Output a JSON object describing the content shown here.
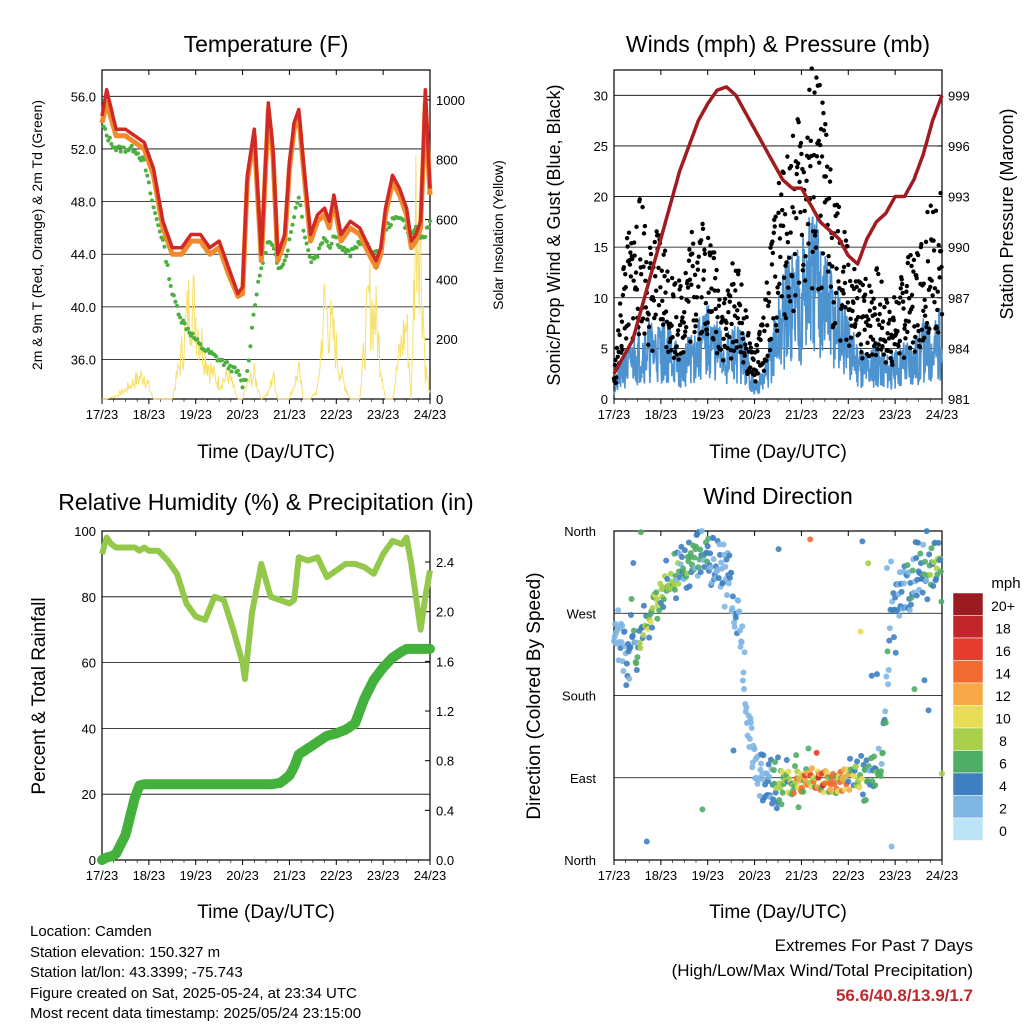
{
  "colors": {
    "temp": "#d12a26",
    "temp_orange": "#f08a2c",
    "dew": "#4daf3f",
    "solar": "#f7e06b",
    "wind": "#4d93d0",
    "gust": "#000000",
    "pressure": "#a01c20",
    "rh": "#93c84a",
    "precip": "#44b13c",
    "extremes": "#c0282d"
  },
  "x_tick_labels": [
    "17/23",
    "18/23",
    "19/23",
    "20/23",
    "21/23",
    "22/23",
    "23/23",
    "24/23"
  ],
  "panels": {
    "temperature": {
      "title": "Temperature (F)",
      "xlabel": "Time (Day/UTC)",
      "ylabel_left": "2m & 9m T (Red, Orange) & 2m Td (Green)",
      "ylabel_right": "Solar Insolation (Yellow)",
      "left_ticks": [
        "56.0",
        "52.0",
        "48.0",
        "44.0",
        "40.0",
        "36.0"
      ],
      "right_ticks": [
        "1000",
        "800",
        "600",
        "400",
        "200",
        "0"
      ]
    },
    "winds": {
      "title": "Winds (mph) & Pressure (mb)",
      "xlabel": "Time (Day/UTC)",
      "ylabel_left": "Sonic/Prop Wind & Gust (Blue, Black)",
      "ylabel_right": "Station Pressure (Maroon)",
      "left_ticks": [
        "30",
        "25",
        "20",
        "15",
        "10",
        "5",
        "0"
      ],
      "right_ticks": [
        "999",
        "996",
        "993",
        "990",
        "987",
        "984",
        "981"
      ]
    },
    "humidity": {
      "title": "Relative Humidity (%) & Precipitation (in)",
      "xlabel": "Time (Day/UTC)",
      "ylabel_left": "Percent & Total Rainfall",
      "left_ticks": [
        "100",
        "80",
        "60",
        "40",
        "20",
        "0"
      ],
      "right_ticks": [
        "2.4",
        "2.0",
        "1.6",
        "1.2",
        "0.8",
        "0.4",
        "0.0"
      ]
    },
    "direction": {
      "title": "Wind Direction",
      "xlabel": "Time (Day/UTC)",
      "ylabel_left": "Direction (Colored By Speed)",
      "left_ticks": [
        "North",
        "West",
        "South",
        "East",
        "North"
      ],
      "legend_title": "mph",
      "legend_labels": [
        "20+",
        "18",
        "16",
        "14",
        "12",
        "10",
        "8",
        "6",
        "4",
        "2",
        "0"
      ],
      "legend_colors": [
        "#9b1c20",
        "#c3262a",
        "#e43c2e",
        "#f26b33",
        "#f7a847",
        "#e7dc55",
        "#a9cf4b",
        "#4fad65",
        "#3f7fc0",
        "#7fb6e4",
        "#bde3f7"
      ]
    }
  },
  "info": {
    "location": "Location: Camden",
    "elevation": "Station elevation: 150.327 m",
    "latlon": "Station lat/lon: 43.3399; -75.743",
    "created": "Figure created on Sat, 2025-05-24, at 23:34 UTC",
    "recent": "Most recent data timestamp: 2025/05/24 23:15:00"
  },
  "extremes": {
    "line1": "Extremes For Past 7 Days",
    "line2": "(High/Low/Max Wind/Total Precipitation)",
    "values": "56.6/40.8/13.9/1.7"
  },
  "chart_data": [
    {
      "type": "line",
      "title": "Temperature (F)",
      "xlabel": "Time (Day/UTC)",
      "ylabel": "2m & 9m T (Red, Orange) & 2m Td (Green)",
      "ylabel_right": "Solar Insolation (Yellow)",
      "x_range": [
        0,
        7
      ],
      "ylim": [
        33,
        58
      ],
      "ylim_right": [
        0,
        1100
      ],
      "x": [
        0,
        0.1,
        0.3,
        0.5,
        0.7,
        0.9,
        1.1,
        1.3,
        1.5,
        1.7,
        1.9,
        2.1,
        2.3,
        2.5,
        2.7,
        2.9,
        3.0,
        3.1,
        3.25,
        3.4,
        3.55,
        3.65,
        3.75,
        3.9,
        4.0,
        4.1,
        4.2,
        4.3,
        4.45,
        4.6,
        4.75,
        4.85,
        4.95,
        5.1,
        5.3,
        5.5,
        5.7,
        5.85,
        5.95,
        6.05,
        6.2,
        6.35,
        6.5,
        6.6,
        6.7,
        6.8,
        6.9,
        7.0
      ],
      "series": [
        {
          "name": "2m T",
          "values": [
            54.5,
            56.5,
            53.5,
            53.5,
            53,
            52.5,
            50.5,
            46.5,
            44.5,
            44.5,
            45.5,
            45.5,
            44.5,
            45,
            43,
            41,
            41.5,
            50,
            53.5,
            44,
            55.5,
            52,
            44,
            45.5,
            51,
            54,
            55,
            51,
            45.5,
            47,
            47.5,
            46.5,
            48.5,
            45.5,
            46.5,
            46,
            44.5,
            43.5,
            44.5,
            47.5,
            50,
            49,
            47.5,
            45,
            45.5,
            46.5,
            56.5,
            49
          ]
        },
        {
          "name": "9m T",
          "values": [
            54,
            55.5,
            53,
            53,
            52.5,
            52,
            50,
            46,
            44,
            44,
            45,
            45,
            44,
            44.5,
            42.5,
            40.8,
            41,
            49.5,
            53,
            43.5,
            55,
            51.5,
            43.5,
            45,
            50.5,
            53.5,
            54.5,
            50.5,
            45,
            46.5,
            47,
            46,
            48,
            45,
            46,
            45.5,
            44,
            43,
            44,
            47,
            49.5,
            48.5,
            47,
            44.5,
            45,
            46,
            55.5,
            48.5
          ]
        },
        {
          "name": "2m Td",
          "values": [
            54,
            53,
            52,
            52,
            52,
            51,
            47.5,
            45,
            41,
            39,
            38,
            37,
            36.5,
            36,
            35.5,
            35,
            34,
            35,
            40,
            43,
            45,
            44.5,
            43,
            43.5,
            45,
            47,
            48.5,
            46,
            43.5,
            44,
            45.5,
            44.5,
            45.5,
            44.5,
            44,
            45,
            44.5,
            44,
            44,
            46,
            46.5,
            47,
            46,
            45.5,
            46,
            45,
            45.5,
            46.5
          ]
        },
        {
          "name": "Solar",
          "values": [
            0,
            0,
            10,
            30,
            60,
            80,
            0,
            0,
            0,
            150,
            350,
            200,
            100,
            50,
            80,
            0,
            0,
            50,
            80,
            0,
            20,
            80,
            0,
            0,
            0,
            50,
            90,
            0,
            0,
            30,
            310,
            250,
            200,
            80,
            0,
            0,
            330,
            260,
            120,
            0,
            0,
            150,
            250,
            0,
            650,
            520,
            100,
            20
          ]
        }
      ]
    },
    {
      "type": "scatter",
      "title": "Winds (mph) & Pressure (mb)",
      "xlabel": "Time (Day/UTC)",
      "ylabel": "Sonic/Prop Wind & Gust (Blue, Black)",
      "ylabel_right": "Station Pressure (Maroon)",
      "x_range": [
        0,
        7
      ],
      "ylim": [
        0,
        32.5
      ],
      "ylim_right": [
        981,
        1000.5
      ],
      "x": [
        0,
        0.1,
        0.2,
        0.4,
        0.6,
        0.8,
        1.0,
        1.2,
        1.4,
        1.6,
        1.8,
        2.0,
        2.2,
        2.4,
        2.6,
        2.8,
        3.0,
        3.2,
        3.4,
        3.6,
        3.8,
        4.0,
        4.2,
        4.4,
        4.6,
        4.8,
        5.0,
        5.2,
        5.4,
        5.6,
        5.8,
        6.0,
        6.2,
        6.4,
        6.6,
        6.8,
        7.0
      ],
      "series": [
        {
          "name": "Wind",
          "values": [
            1,
            2,
            3,
            4,
            5,
            5,
            5,
            5,
            3,
            4,
            5,
            6,
            5,
            4,
            5,
            4,
            1,
            2,
            5,
            8,
            10,
            11,
            12,
            11,
            9,
            7,
            5,
            4,
            3,
            4,
            3,
            3,
            4,
            4,
            5,
            5,
            6
          ]
        },
        {
          "name": "Gust",
          "values": [
            2,
            5,
            10,
            12,
            14,
            10,
            12,
            9,
            8,
            11,
            13,
            12,
            9,
            7,
            10,
            6,
            3,
            6,
            12,
            16,
            18,
            20,
            22,
            21,
            17,
            13,
            10,
            8,
            8,
            9,
            7,
            7,
            9,
            10,
            12,
            13,
            15
          ]
        },
        {
          "name": "Pressure",
          "values": [
            982.5,
            983,
            983.5,
            984.5,
            986.5,
            988.5,
            990.5,
            992.5,
            994.5,
            996,
            997.5,
            998.5,
            999.3,
            999.5,
            999,
            998,
            997,
            996,
            995,
            994,
            993.5,
            993.5,
            992.5,
            991.5,
            991,
            990.5,
            989.5,
            989,
            990.5,
            991.5,
            992,
            993,
            993,
            994,
            995.5,
            997.5,
            999
          ]
        }
      ]
    },
    {
      "type": "line",
      "title": "Relative Humidity (%) & Precipitation (in)",
      "xlabel": "Time (Day/UTC)",
      "ylabel": "Percent & Total Rainfall",
      "x_range": [
        0,
        7
      ],
      "ylim": [
        0,
        100
      ],
      "ylim_right": [
        0,
        2.65
      ],
      "x": [
        0,
        0.1,
        0.2,
        0.3,
        0.5,
        0.7,
        0.8,
        0.9,
        1.0,
        1.2,
        1.4,
        1.6,
        1.8,
        2.0,
        2.2,
        2.4,
        2.6,
        2.8,
        3.0,
        3.05,
        3.2,
        3.4,
        3.6,
        3.8,
        4.0,
        4.1,
        4.2,
        4.4,
        4.6,
        4.8,
        5.0,
        5.2,
        5.4,
        5.6,
        5.8,
        6.0,
        6.2,
        6.4,
        6.5,
        6.6,
        6.7,
        6.8,
        6.9,
        7.0
      ],
      "series": [
        {
          "name": "RH",
          "values": [
            93,
            98,
            96,
            95,
            95,
            95,
            94,
            95,
            94,
            94,
            91,
            87,
            78,
            74,
            73,
            80,
            79,
            70,
            60,
            55,
            75,
            90,
            80,
            79,
            78,
            79,
            92,
            91,
            92,
            86,
            88,
            90,
            90,
            89,
            87,
            93,
            97,
            96,
            98,
            90,
            80,
            70,
            80,
            88
          ]
        },
        {
          "name": "Precipitation",
          "values": [
            0,
            0.02,
            0.03,
            0.05,
            0.2,
            0.5,
            0.6,
            0.61,
            0.61,
            0.61,
            0.61,
            0.61,
            0.61,
            0.61,
            0.61,
            0.61,
            0.61,
            0.61,
            0.61,
            0.61,
            0.61,
            0.61,
            0.61,
            0.62,
            0.68,
            0.75,
            0.85,
            0.9,
            0.95,
            1.0,
            1.02,
            1.05,
            1.1,
            1.3,
            1.45,
            1.55,
            1.63,
            1.68,
            1.7,
            1.7,
            1.7,
            1.7,
            1.7,
            1.7
          ]
        }
      ]
    },
    {
      "type": "scatter",
      "title": "Wind Direction",
      "xlabel": "Time (Day/UTC)",
      "ylabel": "Direction (Colored By Speed)",
      "x_range": [
        0,
        7
      ],
      "y_tick_labels": [
        "North",
        "West",
        "South",
        "East",
        "North"
      ],
      "ylim": [
        0,
        360
      ],
      "x": [
        0.1,
        0.3,
        0.5,
        0.7,
        0.9,
        1.1,
        1.3,
        1.5,
        1.7,
        1.9,
        2.1,
        2.3,
        2.5,
        2.7,
        2.9,
        3.1,
        3.3,
        3.5,
        3.7,
        3.9,
        4.1,
        4.3,
        4.5,
        4.7,
        4.9,
        5.1,
        5.3,
        5.5,
        5.7,
        5.9,
        6.1,
        6.3,
        6.5,
        6.7,
        6.9
      ],
      "series": [
        {
          "name": "Direction",
          "values": [
            250,
            210,
            230,
            260,
            285,
            300,
            310,
            320,
            330,
            335,
            330,
            320,
            300,
            250,
            130,
            95,
            90,
            85,
            85,
            85,
            88,
            90,
            85,
            85,
            88,
            90,
            92,
            90,
            95,
            260,
            290,
            300,
            320,
            310,
            320
          ]
        },
        {
          "name": "Speed",
          "values": [
            2,
            3,
            5,
            6,
            7,
            6,
            6,
            5,
            5,
            4,
            4,
            3,
            3,
            2,
            2,
            2,
            3,
            6,
            7,
            10,
            11,
            12,
            12,
            11,
            10,
            8,
            6,
            5,
            5,
            3,
            3,
            4,
            4,
            5,
            6
          ]
        }
      ]
    }
  ]
}
